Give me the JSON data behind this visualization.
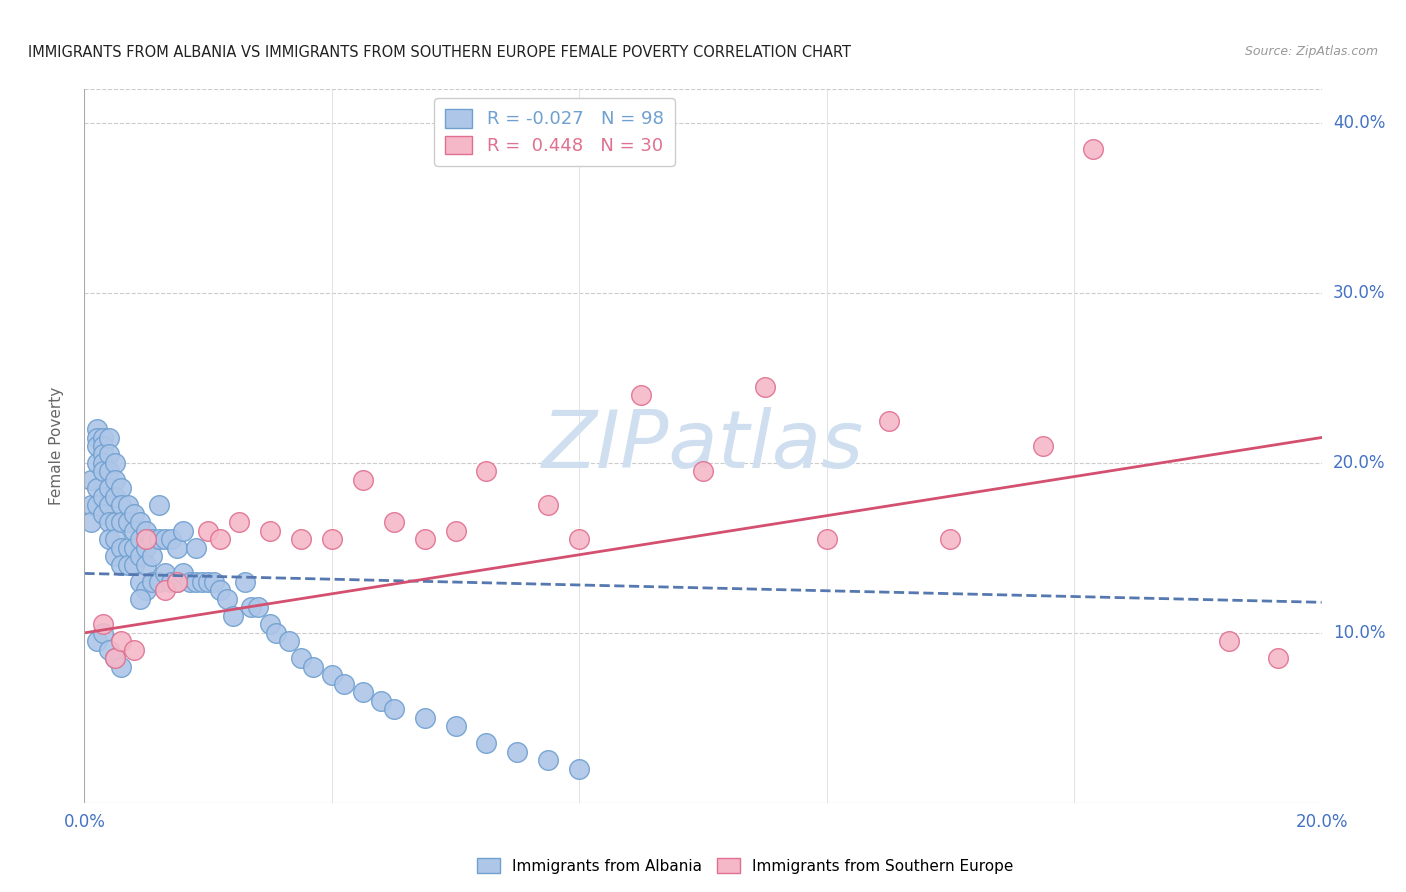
{
  "title": "IMMIGRANTS FROM ALBANIA VS IMMIGRANTS FROM SOUTHERN EUROPE FEMALE POVERTY CORRELATION CHART",
  "source": "Source: ZipAtlas.com",
  "ylabel": "Female Poverty",
  "xlim": [
    0.0,
    0.2
  ],
  "ylim": [
    0.0,
    0.42
  ],
  "albania_color": "#aec6e8",
  "albania_edge": "#6fa0d0",
  "southern_color": "#f5b8c8",
  "southern_edge": "#e07090",
  "trend_albania_color": "#5578b0",
  "trend_southern_color": "#d45070",
  "watermark": "ZIPatlas",
  "watermark_color": "#d0dff0",
  "albania_trend_x0": 0.0,
  "albania_trend_y0": 0.135,
  "albania_trend_x1": 0.2,
  "albania_trend_y1": 0.118,
  "southern_trend_x0": 0.0,
  "southern_trend_y0": 0.1,
  "southern_trend_x1": 0.2,
  "southern_trend_y1": 0.215,
  "albania_x": [
    0.001,
    0.001,
    0.001,
    0.002,
    0.002,
    0.002,
    0.002,
    0.002,
    0.002,
    0.003,
    0.003,
    0.003,
    0.003,
    0.003,
    0.003,
    0.003,
    0.004,
    0.004,
    0.004,
    0.004,
    0.004,
    0.004,
    0.004,
    0.005,
    0.005,
    0.005,
    0.005,
    0.005,
    0.005,
    0.006,
    0.006,
    0.006,
    0.006,
    0.006,
    0.007,
    0.007,
    0.007,
    0.007,
    0.008,
    0.008,
    0.008,
    0.008,
    0.009,
    0.009,
    0.009,
    0.009,
    0.01,
    0.01,
    0.01,
    0.01,
    0.011,
    0.011,
    0.011,
    0.012,
    0.012,
    0.012,
    0.013,
    0.013,
    0.014,
    0.014,
    0.015,
    0.015,
    0.016,
    0.016,
    0.017,
    0.018,
    0.018,
    0.019,
    0.02,
    0.021,
    0.022,
    0.023,
    0.024,
    0.026,
    0.027,
    0.028,
    0.03,
    0.031,
    0.033,
    0.035,
    0.037,
    0.04,
    0.042,
    0.045,
    0.048,
    0.05,
    0.055,
    0.06,
    0.065,
    0.07,
    0.075,
    0.08,
    0.009,
    0.002,
    0.003,
    0.004,
    0.005,
    0.006
  ],
  "albania_y": [
    0.19,
    0.175,
    0.165,
    0.22,
    0.215,
    0.21,
    0.2,
    0.185,
    0.175,
    0.215,
    0.21,
    0.205,
    0.2,
    0.195,
    0.18,
    0.17,
    0.215,
    0.205,
    0.195,
    0.185,
    0.175,
    0.165,
    0.155,
    0.2,
    0.19,
    0.18,
    0.165,
    0.155,
    0.145,
    0.185,
    0.175,
    0.165,
    0.15,
    0.14,
    0.175,
    0.165,
    0.15,
    0.14,
    0.17,
    0.16,
    0.15,
    0.14,
    0.165,
    0.155,
    0.145,
    0.13,
    0.16,
    0.15,
    0.14,
    0.125,
    0.155,
    0.145,
    0.13,
    0.175,
    0.155,
    0.13,
    0.155,
    0.135,
    0.155,
    0.13,
    0.15,
    0.13,
    0.16,
    0.135,
    0.13,
    0.15,
    0.13,
    0.13,
    0.13,
    0.13,
    0.125,
    0.12,
    0.11,
    0.13,
    0.115,
    0.115,
    0.105,
    0.1,
    0.095,
    0.085,
    0.08,
    0.075,
    0.07,
    0.065,
    0.06,
    0.055,
    0.05,
    0.045,
    0.035,
    0.03,
    0.025,
    0.02,
    0.12,
    0.095,
    0.1,
    0.09,
    0.085,
    0.08
  ],
  "southern_x": [
    0.003,
    0.005,
    0.006,
    0.008,
    0.01,
    0.013,
    0.015,
    0.02,
    0.022,
    0.025,
    0.03,
    0.035,
    0.04,
    0.045,
    0.05,
    0.055,
    0.06,
    0.065,
    0.075,
    0.08,
    0.09,
    0.1,
    0.11,
    0.12,
    0.13,
    0.14,
    0.155,
    0.163,
    0.185,
    0.193
  ],
  "southern_y": [
    0.105,
    0.085,
    0.095,
    0.09,
    0.155,
    0.125,
    0.13,
    0.16,
    0.155,
    0.165,
    0.16,
    0.155,
    0.155,
    0.19,
    0.165,
    0.155,
    0.16,
    0.195,
    0.175,
    0.155,
    0.24,
    0.195,
    0.245,
    0.155,
    0.225,
    0.155,
    0.21,
    0.385,
    0.095,
    0.085
  ]
}
